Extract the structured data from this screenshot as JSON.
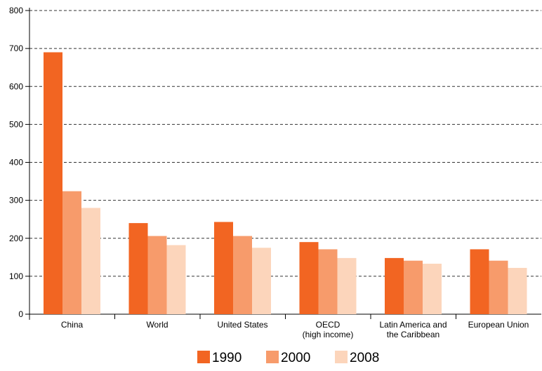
{
  "chart_data": {
    "type": "bar",
    "title": "",
    "xlabel": "",
    "ylabel": "",
    "ylim": [
      0,
      800
    ],
    "yticks": [
      0,
      100,
      200,
      300,
      400,
      500,
      600,
      700,
      800
    ],
    "grid": true,
    "legend_position": "bottom",
    "categories": [
      [
        "China"
      ],
      [
        "World"
      ],
      [
        "United States"
      ],
      [
        "OECD",
        "(high income)"
      ],
      [
        "Latin America and",
        "the Caribbean"
      ],
      [
        "European Union"
      ]
    ],
    "series": [
      {
        "name": "1990",
        "color": "#f26522",
        "values": [
          690,
          240,
          243,
          190,
          148,
          171
        ]
      },
      {
        "name": "2000",
        "color": "#f79b6b",
        "values": [
          324,
          206,
          206,
          171,
          141,
          141
        ]
      },
      {
        "name": "2008",
        "color": "#fcd5bb",
        "values": [
          280,
          182,
          175,
          148,
          133,
          122
        ]
      }
    ]
  }
}
